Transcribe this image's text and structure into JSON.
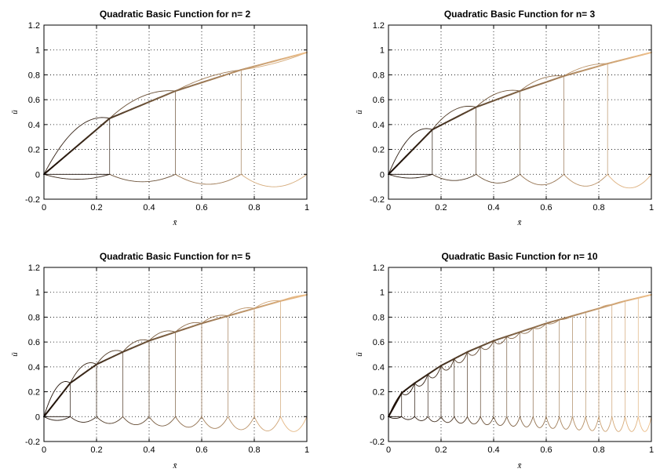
{
  "colors": {
    "curve_dark": "#1a0d05",
    "curve_light": "#f0c08a",
    "grid": "#000000",
    "axes": "#000000"
  },
  "chart_data": [
    {
      "type": "line",
      "title": "Quadratic Basic Function for n= 2",
      "n": 2,
      "xlabel": "x̄",
      "ylabel": "ū",
      "xlim": [
        0,
        1
      ],
      "ylim": [
        -0.2,
        1.2
      ],
      "xticks": [
        "0",
        "0.2",
        "0.4",
        "0.6",
        "0.8",
        "1"
      ],
      "yticks": [
        "-0.2",
        "0",
        "0.2",
        "0.4",
        "0.6",
        "0.8",
        "1",
        "1.2"
      ],
      "grid": true,
      "envelope": {
        "x": [
          0,
          0.25,
          0.5,
          0.75,
          1
        ],
        "y": [
          0,
          0.45,
          0.67,
          0.84,
          0.98
        ]
      },
      "element_peak": [
        0.22,
        0.55,
        0.72,
        0.85,
        0.93
      ],
      "element_trough": [
        -0.03,
        -0.05,
        -0.07,
        -0.09,
        -0.11
      ]
    },
    {
      "type": "line",
      "title": "Quadratic Basic Function for n= 3",
      "n": 3,
      "xlabel": "x̄",
      "ylabel": "ū",
      "xlim": [
        0,
        1
      ],
      "ylim": [
        -0.2,
        1.2
      ],
      "xticks": [
        "0",
        "0.2",
        "0.4",
        "0.6",
        "0.8",
        "1"
      ],
      "yticks": [
        "-0.2",
        "0",
        "0.2",
        "0.4",
        "0.6",
        "0.8",
        "1",
        "1.2"
      ],
      "grid": true,
      "envelope": {
        "x": [
          0,
          0.167,
          0.333,
          0.5,
          0.667,
          0.833,
          1
        ],
        "y": [
          0,
          0.36,
          0.54,
          0.67,
          0.79,
          0.89,
          0.98
        ]
      },
      "element_peak": [
        0.18,
        0.45,
        0.6,
        0.72,
        0.83,
        0.91,
        0.96
      ],
      "element_trough": [
        -0.02,
        -0.04,
        -0.06,
        -0.08,
        -0.09,
        -0.1,
        -0.12
      ]
    },
    {
      "type": "line",
      "title": "Quadratic Basic Function for n= 5",
      "n": 5,
      "xlabel": "x̄",
      "ylabel": "ū",
      "xlim": [
        0,
        1
      ],
      "ylim": [
        -0.2,
        1.2
      ],
      "xticks": [
        "0",
        "0.2",
        "0.4",
        "0.6",
        "0.8",
        "1"
      ],
      "yticks": [
        "-0.2",
        "0",
        "0.2",
        "0.4",
        "0.6",
        "0.8",
        "1",
        "1.2"
      ],
      "grid": true,
      "envelope": {
        "x": [
          0,
          0.1,
          0.2,
          0.3,
          0.4,
          0.5,
          0.6,
          0.7,
          0.8,
          0.9,
          1
        ],
        "y": [
          0,
          0.27,
          0.42,
          0.52,
          0.61,
          0.68,
          0.75,
          0.81,
          0.87,
          0.93,
          0.98
        ]
      },
      "element_peak": [
        0.14,
        0.36,
        0.48,
        0.57,
        0.65,
        0.72,
        0.78,
        0.84,
        0.9,
        0.95,
        0.98
      ],
      "element_trough": [
        -0.02,
        -0.04,
        -0.05,
        -0.06,
        -0.07,
        -0.08,
        -0.09,
        -0.1,
        -0.11,
        -0.12,
        -0.12
      ]
    },
    {
      "type": "line",
      "title": "Quadratic Basic Function for n= 10",
      "n": 10,
      "xlabel": "x̄",
      "ylabel": "ū",
      "xlim": [
        0,
        1
      ],
      "ylim": [
        -0.2,
        1.2
      ],
      "xticks": [
        "0",
        "0.2",
        "0.4",
        "0.6",
        "0.8",
        "1"
      ],
      "yticks": [
        "-0.2",
        "0",
        "0.2",
        "0.4",
        "0.6",
        "0.8",
        "1",
        "1.2"
      ],
      "grid": true,
      "envelope": {
        "x": [
          0,
          0.05,
          0.1,
          0.2,
          0.3,
          0.4,
          0.5,
          0.6,
          0.7,
          0.8,
          0.9,
          1
        ],
        "y": [
          0,
          0.19,
          0.27,
          0.41,
          0.52,
          0.61,
          0.68,
          0.75,
          0.81,
          0.87,
          0.93,
          0.98
        ]
      },
      "element_peak": [
        0.08,
        0.3,
        0.5,
        0.65,
        0.78,
        0.9,
        0.98
      ],
      "element_trough": [
        -0.01,
        -0.04,
        -0.06,
        -0.08,
        -0.1,
        -0.12,
        -0.12
      ]
    }
  ]
}
